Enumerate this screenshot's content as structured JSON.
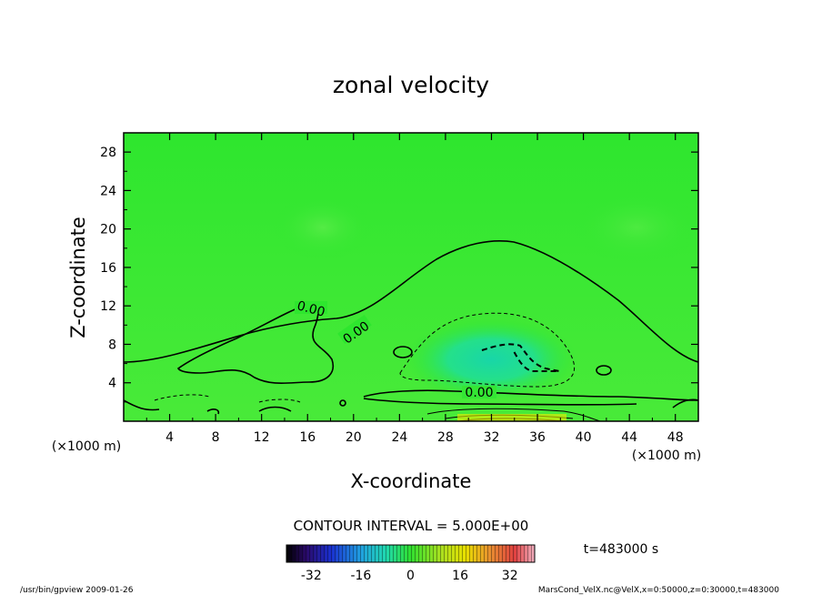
{
  "chart_data": {
    "type": "heatmap",
    "title": "zonal velocity",
    "xlabel": "X-coordinate",
    "ylabel": "Z-coordinate",
    "x_unit": "(×1000 m)",
    "y_unit": "(×1000 m)",
    "xlim": [
      0,
      50
    ],
    "ylim": [
      0,
      30
    ],
    "xticks": [
      "4",
      "8",
      "12",
      "16",
      "20",
      "24",
      "28",
      "32",
      "36",
      "40",
      "44",
      "48"
    ],
    "yticks": [
      "4",
      "8",
      "12",
      "16",
      "20",
      "24",
      "28"
    ],
    "contour_labels": [
      "0.00",
      "0.00",
      "0.00"
    ],
    "contour_interval": "CONTOUR INTERVAL = 5.000E+00",
    "colorbar": {
      "range": [
        -40,
        40
      ],
      "ticks": [
        "-32",
        "-16",
        "0",
        "16",
        "32"
      ]
    },
    "time_label": "t=483000 s"
  },
  "footer": {
    "left": "/usr/bin/gpview   2009-01-26",
    "right": "MarsCond_VelX.nc@VelX,x=0:50000,z=0:30000,t=483000"
  }
}
